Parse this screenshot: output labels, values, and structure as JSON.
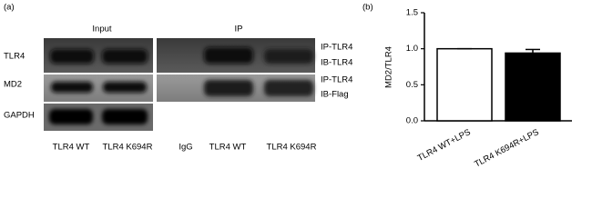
{
  "panel_a": {
    "label": "(a)",
    "headers": [
      "Input",
      "IP"
    ],
    "row_labels": [
      "TLR4",
      "MD2",
      "GAPDH"
    ],
    "right_labels": [
      "IP-TLR4",
      "IB-TLR4",
      "IP-TLR4",
      "IB-Flag"
    ],
    "lanes": [
      "TLR4 WT",
      "TLR4 K694R",
      "IgG",
      "TLR4 WT",
      "TLR4 K694R"
    ]
  },
  "chart_data": {
    "type": "bar",
    "panel_label": "(b)",
    "y_label": "MD2/TLR4",
    "categories": [
      "TLR4 WT+LPS",
      "TLR4 K694R+LPS"
    ],
    "values": [
      1.0,
      0.94
    ],
    "errors": [
      0,
      0.05
    ],
    "colors": [
      "#ffffff",
      "#000000"
    ],
    "edge_color": "#000000",
    "ylim": [
      0,
      1.5
    ],
    "yticks": [
      {
        "value": 0,
        "label": "0.0"
      },
      0.5,
      {
        "value": 1,
        "label": "1.0"
      },
      1.5
    ]
  }
}
